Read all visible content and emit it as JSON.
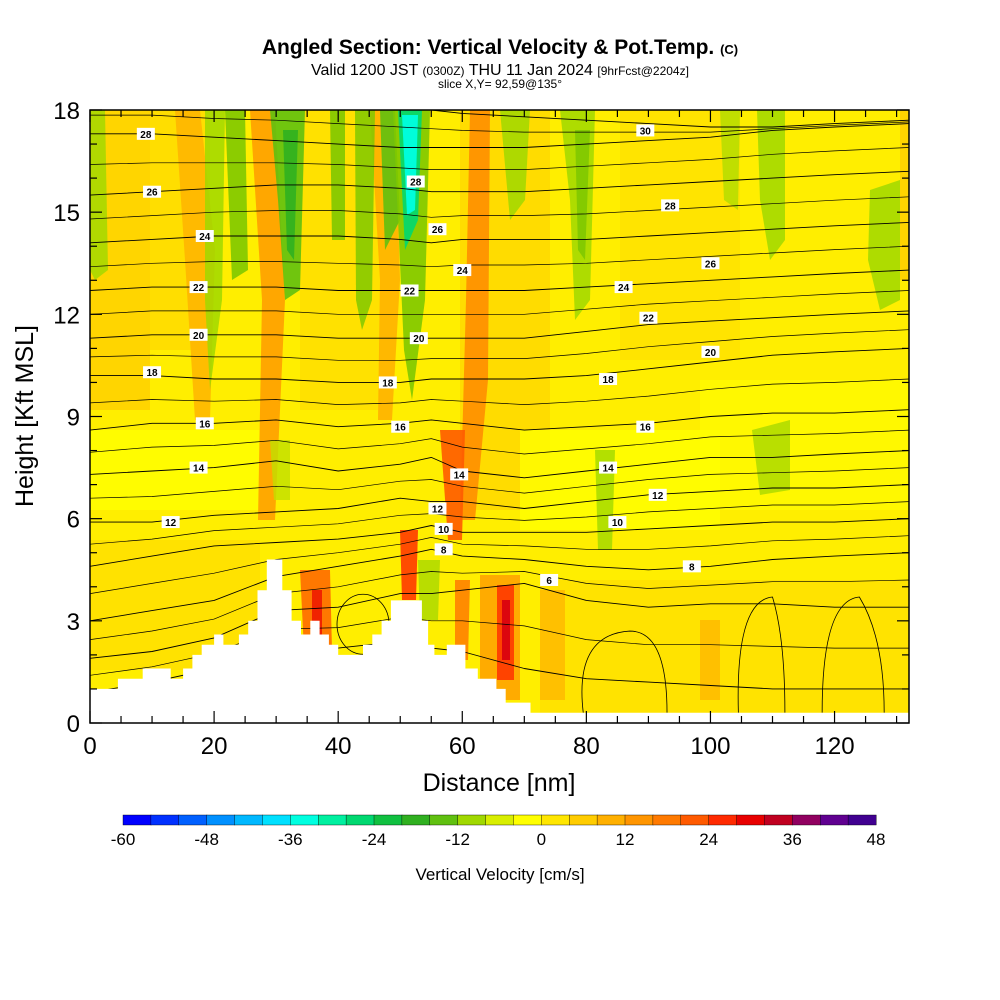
{
  "title": {
    "main": "Angled Section: Vertical Velocity & Pot.Temp.",
    "tag": "(C)",
    "valid_prefix": "Valid 1200 JST",
    "valid_utc": "(0300Z)",
    "valid_date": "THU 11 Jan 2024",
    "forecast": "[9hrFcst@2204z]",
    "slice": "slice X,Y= 92,59@135°"
  },
  "chart_data": {
    "type": "heatmap",
    "xlabel": "Distance [nm]",
    "ylabel": "Height [Kft MSL]",
    "xlim": [
      0,
      132
    ],
    "ylim": [
      0,
      18
    ],
    "x_ticks": [
      0,
      20,
      40,
      60,
      80,
      100,
      120
    ],
    "y_ticks": [
      0,
      3,
      6,
      9,
      12,
      15,
      18
    ],
    "colorbar": {
      "label": "Vertical Velocity [cm/s]",
      "min": -60,
      "max": 48,
      "step": 4,
      "ticks": [
        -60,
        -48,
        -36,
        -24,
        -12,
        0,
        12,
        24,
        36,
        48
      ],
      "colors": [
        "#0000ff",
        "#0030ff",
        "#0060ff",
        "#0090ff",
        "#00b8ff",
        "#00e0ff",
        "#00ffe0",
        "#00f0a0",
        "#00d870",
        "#10c040",
        "#30b020",
        "#60c010",
        "#a0d800",
        "#d8ee00",
        "#ffff00",
        "#ffe600",
        "#ffcc00",
        "#ffb000",
        "#ff9500",
        "#ff7a00",
        "#ff5a00",
        "#ff2a00",
        "#e80000",
        "#c00020",
        "#900060",
        "#600090",
        "#400090"
      ]
    },
    "terrain_kft": [
      [
        0,
        1.0
      ],
      [
        4.5,
        1.0
      ],
      [
        4.5,
        1.3
      ],
      [
        8.5,
        1.3
      ],
      [
        8.5,
        1.6
      ],
      [
        13,
        1.6
      ],
      [
        13,
        1.3
      ],
      [
        15,
        1.3
      ],
      [
        15,
        1.6
      ],
      [
        16.5,
        1.6
      ],
      [
        16.5,
        2.0
      ],
      [
        18,
        2.0
      ],
      [
        18,
        2.3
      ],
      [
        20,
        2.3
      ],
      [
        20,
        2.6
      ],
      [
        21.5,
        2.6
      ],
      [
        21.5,
        2.3
      ],
      [
        24,
        2.3
      ],
      [
        24,
        2.6
      ],
      [
        25.5,
        2.6
      ],
      [
        25.5,
        3.0
      ],
      [
        27,
        3.0
      ],
      [
        27,
        3.9
      ],
      [
        28.5,
        3.9
      ],
      [
        28.5,
        4.8
      ],
      [
        31,
        4.8
      ],
      [
        31,
        3.9
      ],
      [
        32.5,
        3.9
      ],
      [
        32.5,
        3.0
      ],
      [
        34,
        3.0
      ],
      [
        34,
        2.6
      ],
      [
        35.5,
        2.6
      ],
      [
        35.5,
        3.0
      ],
      [
        37,
        3.0
      ],
      [
        37,
        2.6
      ],
      [
        38.5,
        2.6
      ],
      [
        38.5,
        2.3
      ],
      [
        40,
        2.3
      ],
      [
        40,
        2.0
      ],
      [
        44,
        2.0
      ],
      [
        44,
        2.3
      ],
      [
        45.5,
        2.3
      ],
      [
        45.5,
        2.6
      ],
      [
        47,
        2.6
      ],
      [
        47,
        3.0
      ],
      [
        48.5,
        3.0
      ],
      [
        48.5,
        3.6
      ],
      [
        53.5,
        3.6
      ],
      [
        53.5,
        3.0
      ],
      [
        54.5,
        3.0
      ],
      [
        54.5,
        2.3
      ],
      [
        55.5,
        2.3
      ],
      [
        55.5,
        2.0
      ],
      [
        57.5,
        2.0
      ],
      [
        57.5,
        2.3
      ],
      [
        60.5,
        2.3
      ],
      [
        60.5,
        1.6
      ],
      [
        62.5,
        1.6
      ],
      [
        62.5,
        1.3
      ],
      [
        65.5,
        1.3
      ],
      [
        65.5,
        1.0
      ],
      [
        67,
        1.0
      ],
      [
        67,
        0.6
      ],
      [
        71,
        0.6
      ],
      [
        71,
        0.3
      ],
      [
        132,
        0.3
      ]
    ],
    "theta_levels_c": [
      4,
      6,
      8,
      10,
      12,
      14,
      16,
      18,
      20,
      22,
      24,
      26,
      28,
      30
    ],
    "theta_contour_labels": [
      {
        "x": 9,
        "y": 17.3,
        "v": 28
      },
      {
        "x": 10,
        "y": 15.6,
        "v": 26
      },
      {
        "x": 18.5,
        "y": 14.3,
        "v": 24
      },
      {
        "x": 17.5,
        "y": 12.8,
        "v": 22
      },
      {
        "x": 17.5,
        "y": 11.4,
        "v": 20
      },
      {
        "x": 10,
        "y": 10.3,
        "v": 18
      },
      {
        "x": 18.5,
        "y": 8.8,
        "v": 16
      },
      {
        "x": 17.5,
        "y": 7.5,
        "v": 14
      },
      {
        "x": 13,
        "y": 5.9,
        "v": 12
      },
      {
        "x": 52.5,
        "y": 15.9,
        "v": 28
      },
      {
        "x": 56,
        "y": 14.5,
        "v": 26
      },
      {
        "x": 60,
        "y": 13.3,
        "v": 24
      },
      {
        "x": 51.5,
        "y": 12.7,
        "v": 22
      },
      {
        "x": 53,
        "y": 11.3,
        "v": 20
      },
      {
        "x": 48,
        "y": 10.0,
        "v": 18
      },
      {
        "x": 50,
        "y": 8.7,
        "v": 16
      },
      {
        "x": 59.5,
        "y": 7.3,
        "v": 14
      },
      {
        "x": 56,
        "y": 6.3,
        "v": 12
      },
      {
        "x": 57,
        "y": 5.7,
        "v": 10
      },
      {
        "x": 57,
        "y": 5.1,
        "v": 8
      },
      {
        "x": 74,
        "y": 4.2,
        "v": 6
      },
      {
        "x": 89.5,
        "y": 17.4,
        "v": 30
      },
      {
        "x": 93.5,
        "y": 15.2,
        "v": 28
      },
      {
        "x": 100,
        "y": 13.5,
        "v": 26
      },
      {
        "x": 86,
        "y": 12.8,
        "v": 24
      },
      {
        "x": 90,
        "y": 11.9,
        "v": 22
      },
      {
        "x": 100,
        "y": 10.9,
        "v": 20
      },
      {
        "x": 83.5,
        "y": 10.1,
        "v": 18
      },
      {
        "x": 89.5,
        "y": 8.7,
        "v": 16
      },
      {
        "x": 83.5,
        "y": 7.5,
        "v": 14
      },
      {
        "x": 91.5,
        "y": 6.7,
        "v": 12
      },
      {
        "x": 85,
        "y": 5.9,
        "v": 10
      },
      {
        "x": 97,
        "y": 4.6,
        "v": 8
      }
    ]
  }
}
